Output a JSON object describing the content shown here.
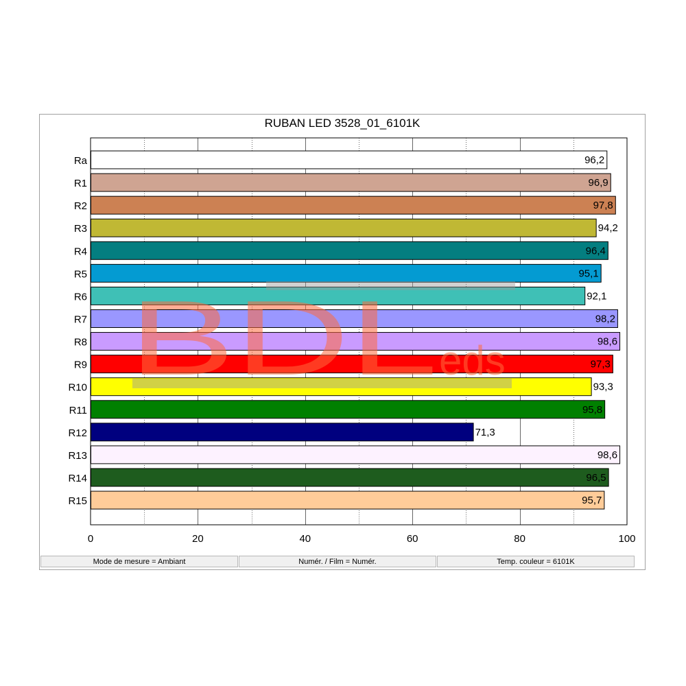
{
  "chart_data": {
    "type": "bar",
    "orientation": "horizontal",
    "title": "RUBAN LED 3528_01_6101K",
    "categories": [
      "Ra",
      "R1",
      "R2",
      "R3",
      "R4",
      "R5",
      "R6",
      "R7",
      "R8",
      "R9",
      "R10",
      "R11",
      "R12",
      "R13",
      "R14",
      "R15"
    ],
    "values": [
      96.2,
      96.9,
      97.8,
      94.2,
      96.4,
      95.1,
      92.1,
      98.2,
      98.6,
      97.3,
      93.3,
      95.8,
      71.3,
      98.6,
      96.5,
      95.7
    ],
    "value_labels": [
      "96,2",
      "96,9",
      "97,8",
      "94,2",
      "96,4",
      "95,1",
      "92,1",
      "98,2",
      "98,6",
      "97,3",
      "93,3",
      "95,8",
      "71,3",
      "98,6",
      "96,5",
      "95,7"
    ],
    "colors": [
      "#ffffff",
      "#cfa492",
      "#cc8153",
      "#c0b834",
      "#047e80",
      "#049bd2",
      "#3fc0b6",
      "#9a97ff",
      "#c99bff",
      "#ff0000",
      "#ffff00",
      "#008000",
      "#00007f",
      "#fdf2ff",
      "#1e5c1e",
      "#ffcc99"
    ],
    "xlim": [
      0,
      100
    ],
    "xticks": [
      "0",
      "20",
      "40",
      "60",
      "80",
      "100"
    ],
    "xlabel": "",
    "ylabel": "",
    "grid": true
  },
  "status": {
    "mode": "Mode de mesure = Ambiant",
    "film": "Numér. / Film = Numér.",
    "temp": "Temp. couleur = 6101K"
  },
  "watermark": {
    "main": "BDL",
    "suffix": "eds"
  }
}
